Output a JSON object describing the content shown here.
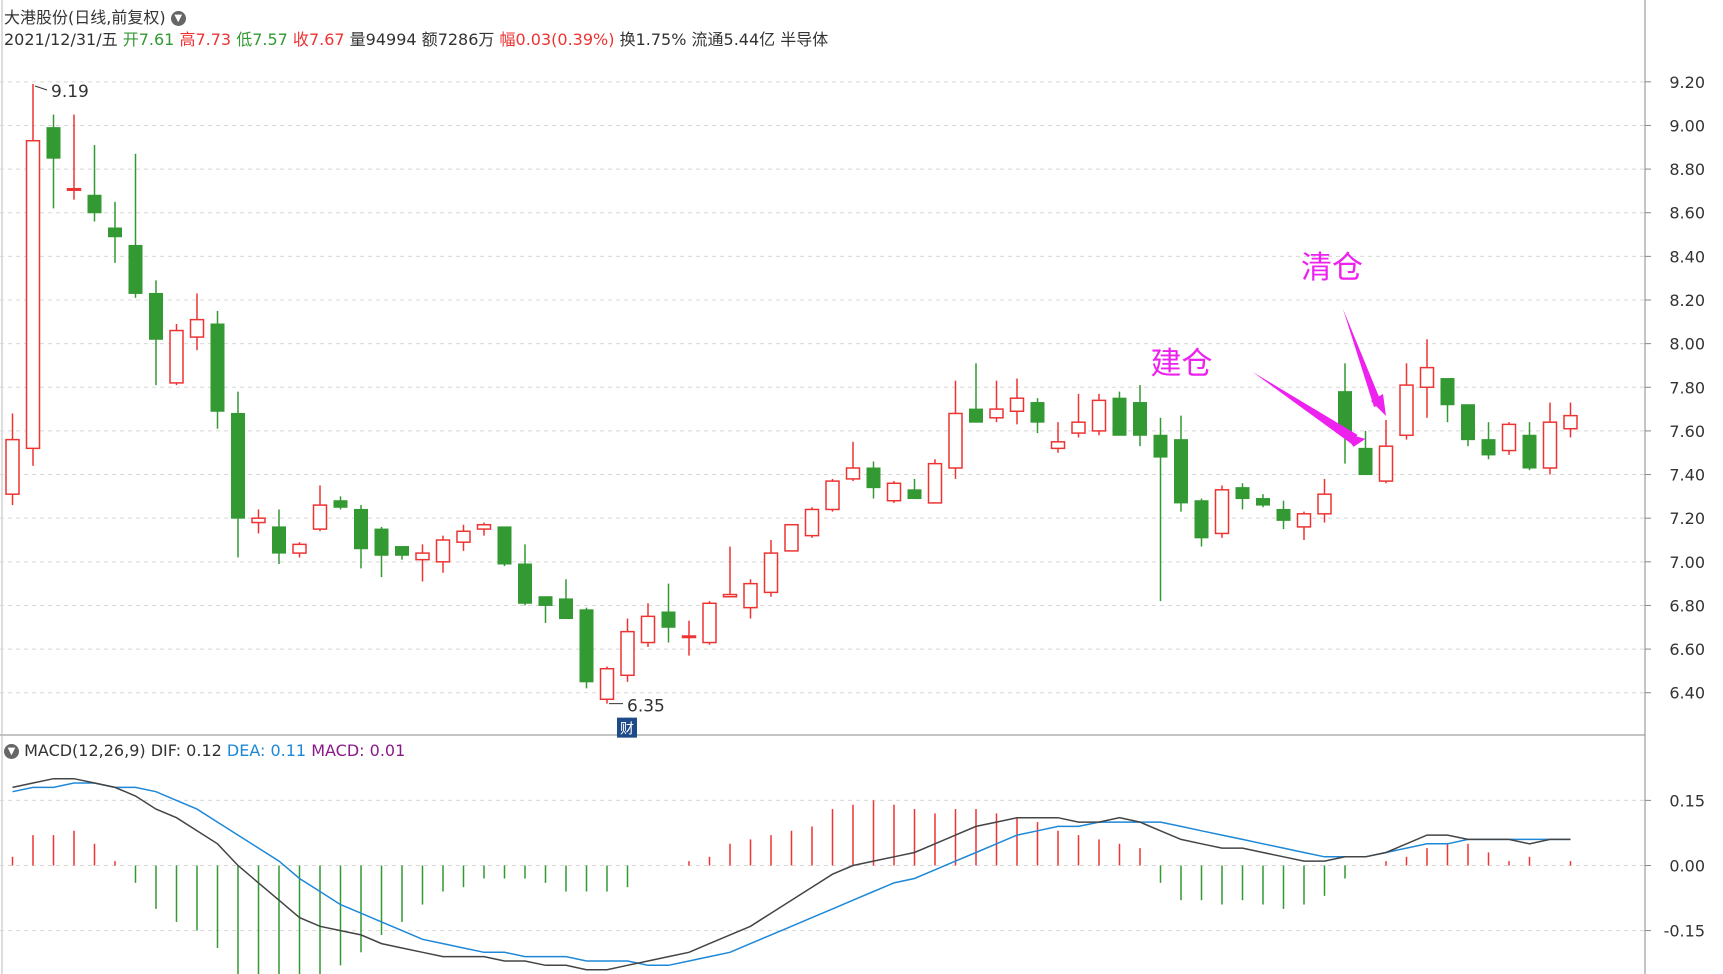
{
  "header": {
    "title": "大港股份(日线,前复权)",
    "date": "2021/12/31/五",
    "open_label": "开",
    "open": "7.61",
    "high_label": "高",
    "high": "7.73",
    "low_label": "低",
    "low": "7.57",
    "close_label": "收",
    "close": "7.67",
    "vol_label": "量",
    "vol": "94994",
    "amt_label": "额",
    "amt": "7286万",
    "chg_label": "幅",
    "chg": "0.03(0.39%)",
    "turn_label": "换",
    "turn": "1.75%",
    "float_label": "流通",
    "float": "5.44亿",
    "sector": "半导体"
  },
  "macd_header": {
    "name": "MACD(12,26,9)",
    "dif": "DIF: 0.12",
    "dea": "DEA: 0.11",
    "macd": "MACD: 0.01"
  },
  "colors": {
    "up": "#ee3333",
    "down": "#339933",
    "dif": "#444444",
    "dea": "#1e88d8",
    "annotation": "#ee22ee",
    "macd_label": "#8a1a8a"
  },
  "chart_data": [
    {
      "type": "candlestick",
      "ylim": [
        6.22,
        9.3
      ],
      "y_ticks": [
        "9.20",
        "9.00",
        "8.80",
        "8.60",
        "8.40",
        "8.20",
        "8.00",
        "7.80",
        "7.60",
        "7.40",
        "7.20",
        "7.00",
        "6.80",
        "6.60",
        "6.40"
      ],
      "ohlc": [
        [
          7.31,
          7.68,
          7.26,
          7.56
        ],
        [
          7.52,
          9.19,
          7.44,
          8.93
        ],
        [
          8.99,
          9.05,
          8.62,
          8.85
        ],
        [
          8.71,
          9.05,
          8.66,
          8.71
        ],
        [
          8.68,
          8.91,
          8.56,
          8.6
        ],
        [
          8.53,
          8.65,
          8.37,
          8.49
        ],
        [
          8.45,
          8.87,
          8.21,
          8.23
        ],
        [
          8.23,
          8.29,
          7.81,
          8.02
        ],
        [
          7.82,
          8.09,
          7.81,
          8.06
        ],
        [
          8.03,
          8.23,
          7.97,
          8.11
        ],
        [
          8.09,
          8.15,
          7.61,
          7.69
        ],
        [
          7.68,
          7.78,
          7.02,
          7.2
        ],
        [
          7.18,
          7.24,
          7.13,
          7.2
        ],
        [
          7.16,
          7.24,
          6.99,
          7.04
        ],
        [
          7.04,
          7.09,
          7.02,
          7.08
        ],
        [
          7.15,
          7.35,
          7.14,
          7.26
        ],
        [
          7.28,
          7.3,
          7.24,
          7.25
        ],
        [
          7.24,
          7.26,
          6.97,
          7.06
        ],
        [
          7.15,
          7.16,
          6.93,
          7.03
        ],
        [
          7.07,
          7.07,
          7.01,
          7.03
        ],
        [
          7.01,
          7.08,
          6.91,
          7.04
        ],
        [
          7.0,
          7.12,
          6.95,
          7.1
        ],
        [
          7.09,
          7.17,
          7.05,
          7.14
        ],
        [
          7.15,
          7.18,
          7.12,
          7.17
        ],
        [
          7.16,
          7.16,
          6.98,
          6.99
        ],
        [
          6.99,
          7.08,
          6.8,
          6.81
        ],
        [
          6.84,
          6.84,
          6.72,
          6.8
        ],
        [
          6.83,
          6.92,
          6.74,
          6.74
        ],
        [
          6.78,
          6.79,
          6.42,
          6.45
        ],
        [
          6.37,
          6.52,
          6.35,
          6.51
        ],
        [
          6.48,
          6.74,
          6.45,
          6.68
        ],
        [
          6.63,
          6.81,
          6.61,
          6.75
        ],
        [
          6.77,
          6.9,
          6.63,
          6.7
        ],
        [
          6.66,
          6.73,
          6.57,
          6.66
        ],
        [
          6.63,
          6.82,
          6.62,
          6.81
        ],
        [
          6.84,
          7.07,
          6.84,
          6.85
        ],
        [
          6.79,
          6.92,
          6.74,
          6.9
        ],
        [
          6.86,
          7.1,
          6.84,
          7.04
        ],
        [
          7.05,
          7.17,
          7.05,
          7.17
        ],
        [
          7.12,
          7.25,
          7.11,
          7.24
        ],
        [
          7.24,
          7.38,
          7.23,
          7.37
        ],
        [
          7.38,
          7.55,
          7.37,
          7.43
        ],
        [
          7.43,
          7.46,
          7.29,
          7.34
        ],
        [
          7.28,
          7.37,
          7.27,
          7.36
        ],
        [
          7.33,
          7.38,
          7.29,
          7.29
        ],
        [
          7.27,
          7.47,
          7.27,
          7.45
        ],
        [
          7.43,
          7.83,
          7.38,
          7.68
        ],
        [
          7.7,
          7.91,
          7.64,
          7.64
        ],
        [
          7.66,
          7.83,
          7.64,
          7.7
        ],
        [
          7.69,
          7.84,
          7.63,
          7.75
        ],
        [
          7.73,
          7.75,
          7.59,
          7.64
        ],
        [
          7.52,
          7.64,
          7.5,
          7.55
        ],
        [
          7.59,
          7.77,
          7.57,
          7.64
        ],
        [
          7.6,
          7.77,
          7.58,
          7.74
        ],
        [
          7.75,
          7.78,
          7.58,
          7.58
        ],
        [
          7.73,
          7.81,
          7.53,
          7.58
        ],
        [
          7.58,
          7.66,
          6.82,
          7.48
        ],
        [
          7.56,
          7.67,
          7.23,
          7.27
        ],
        [
          7.28,
          7.29,
          7.07,
          7.11
        ],
        [
          7.13,
          7.35,
          7.11,
          7.33
        ],
        [
          7.34,
          7.36,
          7.24,
          7.29
        ],
        [
          7.29,
          7.31,
          7.25,
          7.26
        ],
        [
          7.24,
          7.28,
          7.15,
          7.19
        ],
        [
          7.16,
          7.23,
          7.1,
          7.22
        ],
        [
          7.22,
          7.38,
          7.18,
          7.31
        ],
        [
          7.78,
          7.91,
          7.45,
          7.59
        ],
        [
          7.52,
          7.6,
          7.4,
          7.4
        ],
        [
          7.37,
          7.65,
          7.36,
          7.53
        ],
        [
          7.58,
          7.91,
          7.56,
          7.81
        ],
        [
          7.8,
          8.02,
          7.66,
          7.89
        ],
        [
          7.84,
          7.84,
          7.64,
          7.72
        ],
        [
          7.72,
          7.72,
          7.53,
          7.56
        ],
        [
          7.56,
          7.64,
          7.47,
          7.49
        ],
        [
          7.51,
          7.64,
          7.49,
          7.63
        ],
        [
          7.58,
          7.64,
          7.42,
          7.43
        ],
        [
          7.43,
          7.73,
          7.4,
          7.64
        ],
        [
          7.61,
          7.73,
          7.57,
          7.67
        ]
      ],
      "extrema_labels": {
        "high": "9.19",
        "low": "6.35"
      },
      "badge": "财",
      "annotations": [
        {
          "text": "建仓",
          "candle": 66
        },
        {
          "text": "清仓",
          "candle": 67
        }
      ]
    },
    {
      "type": "macd",
      "title": "MACD(12,26,9)",
      "ylim": [
        -0.25,
        0.22
      ],
      "y_ticks": [
        "0.15",
        "0.00",
        "-0.15"
      ],
      "dif": [
        0.18,
        0.19,
        0.2,
        0.2,
        0.19,
        0.18,
        0.16,
        0.13,
        0.11,
        0.08,
        0.05,
        0.0,
        -0.04,
        -0.08,
        -0.12,
        -0.14,
        -0.15,
        -0.16,
        -0.18,
        -0.19,
        -0.2,
        -0.21,
        -0.21,
        -0.21,
        -0.22,
        -0.22,
        -0.23,
        -0.23,
        -0.24,
        -0.24,
        -0.23,
        -0.22,
        -0.21,
        -0.2,
        -0.18,
        -0.16,
        -0.14,
        -0.11,
        -0.08,
        -0.05,
        -0.02,
        0.0,
        0.01,
        0.02,
        0.03,
        0.05,
        0.07,
        0.09,
        0.1,
        0.11,
        0.11,
        0.11,
        0.1,
        0.1,
        0.11,
        0.1,
        0.08,
        0.06,
        0.05,
        0.04,
        0.04,
        0.03,
        0.02,
        0.01,
        0.01,
        0.02,
        0.02,
        0.03,
        0.05,
        0.07,
        0.07,
        0.06,
        0.06,
        0.06,
        0.05,
        0.06,
        0.06
      ],
      "dea": [
        0.17,
        0.18,
        0.18,
        0.19,
        0.19,
        0.18,
        0.18,
        0.17,
        0.15,
        0.13,
        0.1,
        0.07,
        0.04,
        0.01,
        -0.03,
        -0.06,
        -0.09,
        -0.11,
        -0.13,
        -0.15,
        -0.17,
        -0.18,
        -0.19,
        -0.2,
        -0.2,
        -0.21,
        -0.21,
        -0.21,
        -0.22,
        -0.22,
        -0.22,
        -0.23,
        -0.23,
        -0.22,
        -0.21,
        -0.2,
        -0.18,
        -0.16,
        -0.14,
        -0.12,
        -0.1,
        -0.08,
        -0.06,
        -0.04,
        -0.03,
        -0.01,
        0.01,
        0.03,
        0.05,
        0.07,
        0.08,
        0.09,
        0.09,
        0.1,
        0.1,
        0.1,
        0.1,
        0.09,
        0.08,
        0.07,
        0.06,
        0.05,
        0.04,
        0.03,
        0.02,
        0.02,
        0.02,
        0.03,
        0.04,
        0.05,
        0.05,
        0.06,
        0.06,
        0.06,
        0.06,
        0.06,
        0.06
      ],
      "hist": [
        0.02,
        0.07,
        0.07,
        0.08,
        0.05,
        0.01,
        -0.04,
        -0.1,
        -0.13,
        -0.15,
        -0.19,
        -0.26,
        -0.28,
        -0.28,
        -0.28,
        -0.27,
        -0.23,
        -0.2,
        -0.16,
        -0.13,
        -0.09,
        -0.06,
        -0.05,
        -0.03,
        -0.03,
        -0.03,
        -0.04,
        -0.06,
        -0.06,
        -0.06,
        -0.05,
        0.0,
        0.0,
        0.01,
        0.02,
        0.05,
        0.06,
        0.07,
        0.08,
        0.09,
        0.13,
        0.14,
        0.15,
        0.14,
        0.13,
        0.12,
        0.13,
        0.13,
        0.12,
        0.11,
        0.1,
        0.08,
        0.07,
        0.06,
        0.05,
        0.04,
        -0.04,
        -0.08,
        -0.08,
        -0.09,
        -0.08,
        -0.09,
        -0.1,
        -0.09,
        -0.07,
        -0.03,
        0.0,
        0.01,
        0.02,
        0.04,
        0.05,
        0.05,
        0.03,
        0.01,
        0.02,
        0.0,
        0.01
      ]
    }
  ]
}
